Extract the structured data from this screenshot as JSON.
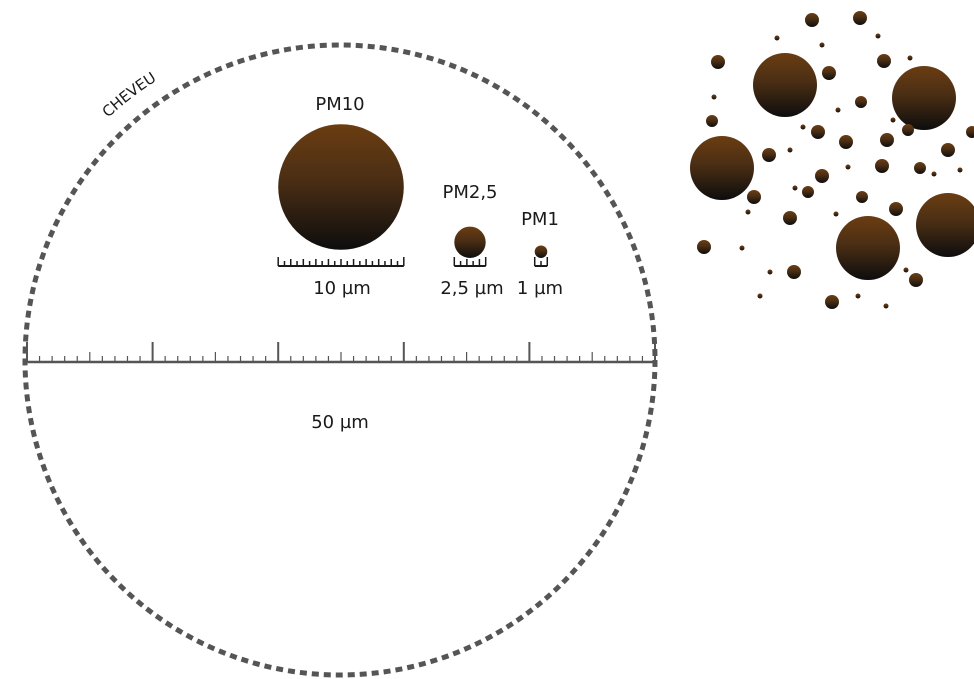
{
  "hair": {
    "label": "CHEVEU",
    "scale_label": "50 µm",
    "diameter_um": 50,
    "outline_color": "#555555"
  },
  "particles": [
    {
      "id": "pm10",
      "label": "PM10",
      "size_um": 10,
      "size_label": "10 µm"
    },
    {
      "id": "pm25",
      "label": "PM2,5",
      "size_um": 2.5,
      "size_label": "2,5 µm"
    },
    {
      "id": "pm1",
      "label": "PM1",
      "size_um": 1,
      "size_label": "1 µm"
    }
  ],
  "colors": {
    "particle_top": "#6b3d12",
    "particle_bottom": "#0d0d0d",
    "ruler": "#555555",
    "text": "#1a1a1a"
  }
}
